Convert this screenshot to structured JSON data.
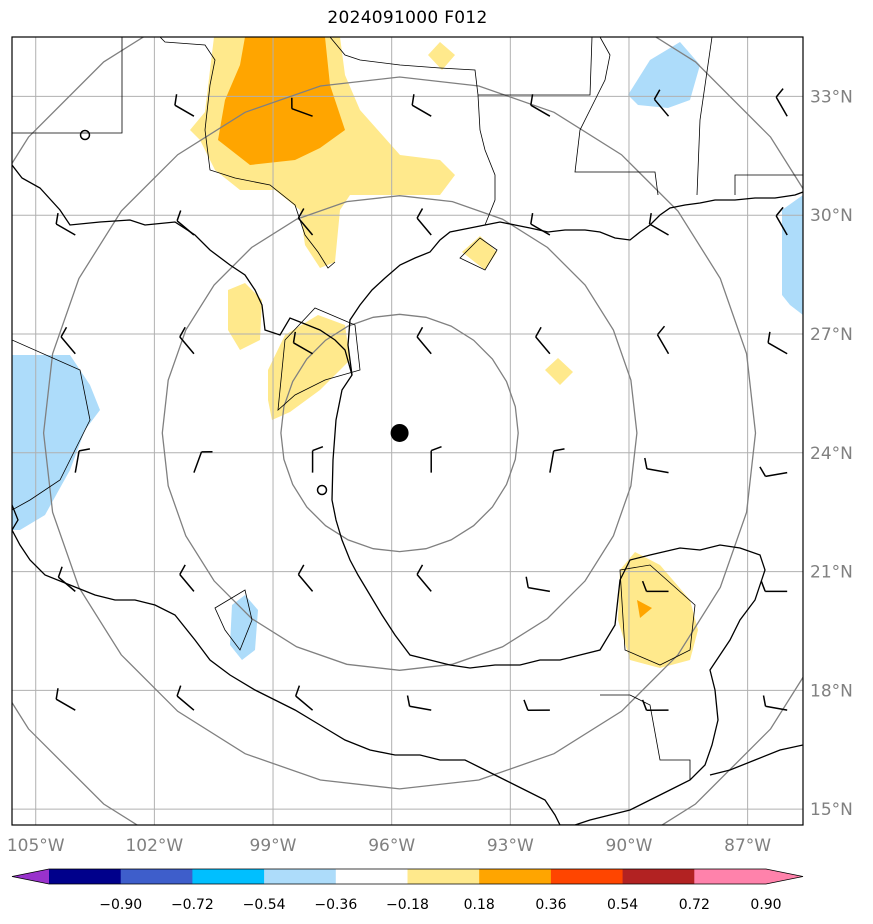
{
  "title": "2024091000 F012",
  "map": {
    "lon_range": [
      -105.6,
      -85.6
    ],
    "lat_range": [
      14.6,
      34.5
    ],
    "lon_ticks": [
      -105,
      -102,
      -99,
      -96,
      -93,
      -90,
      -87
    ],
    "lat_ticks": [
      15,
      18,
      21,
      24,
      27,
      30,
      33
    ],
    "lon_labels": [
      "105°W",
      "102°W",
      "99°W",
      "96°W",
      "93°W",
      "90°W",
      "87°W"
    ],
    "lat_labels": [
      "15°N",
      "18°N",
      "21°N",
      "24°N",
      "27°N",
      "30°N",
      "33°N"
    ],
    "grid": true,
    "storm_center": [
      -95.8,
      24.5
    ],
    "range_rings_deg": [
      3,
      6,
      9,
      12
    ],
    "fill_colors": {
      "positive_light": "#ffe98c",
      "positive_mid": "#ffa500",
      "negative_light": "#addcfa"
    }
  },
  "colorbar": {
    "levels": [
      "−0.90",
      "−0.72",
      "−0.54",
      "−0.36",
      "−0.18",
      "0.18",
      "0.36",
      "0.54",
      "0.72",
      "0.90"
    ],
    "colors": [
      "#9932cc",
      "#00008b",
      "#3e5ecb",
      "#00bfff",
      "#addcfa",
      "#ffffff",
      "#ffe98c",
      "#ffa500",
      "#ff4500",
      "#b22222",
      "#ff82ab",
      "#ff82ab"
    ]
  }
}
